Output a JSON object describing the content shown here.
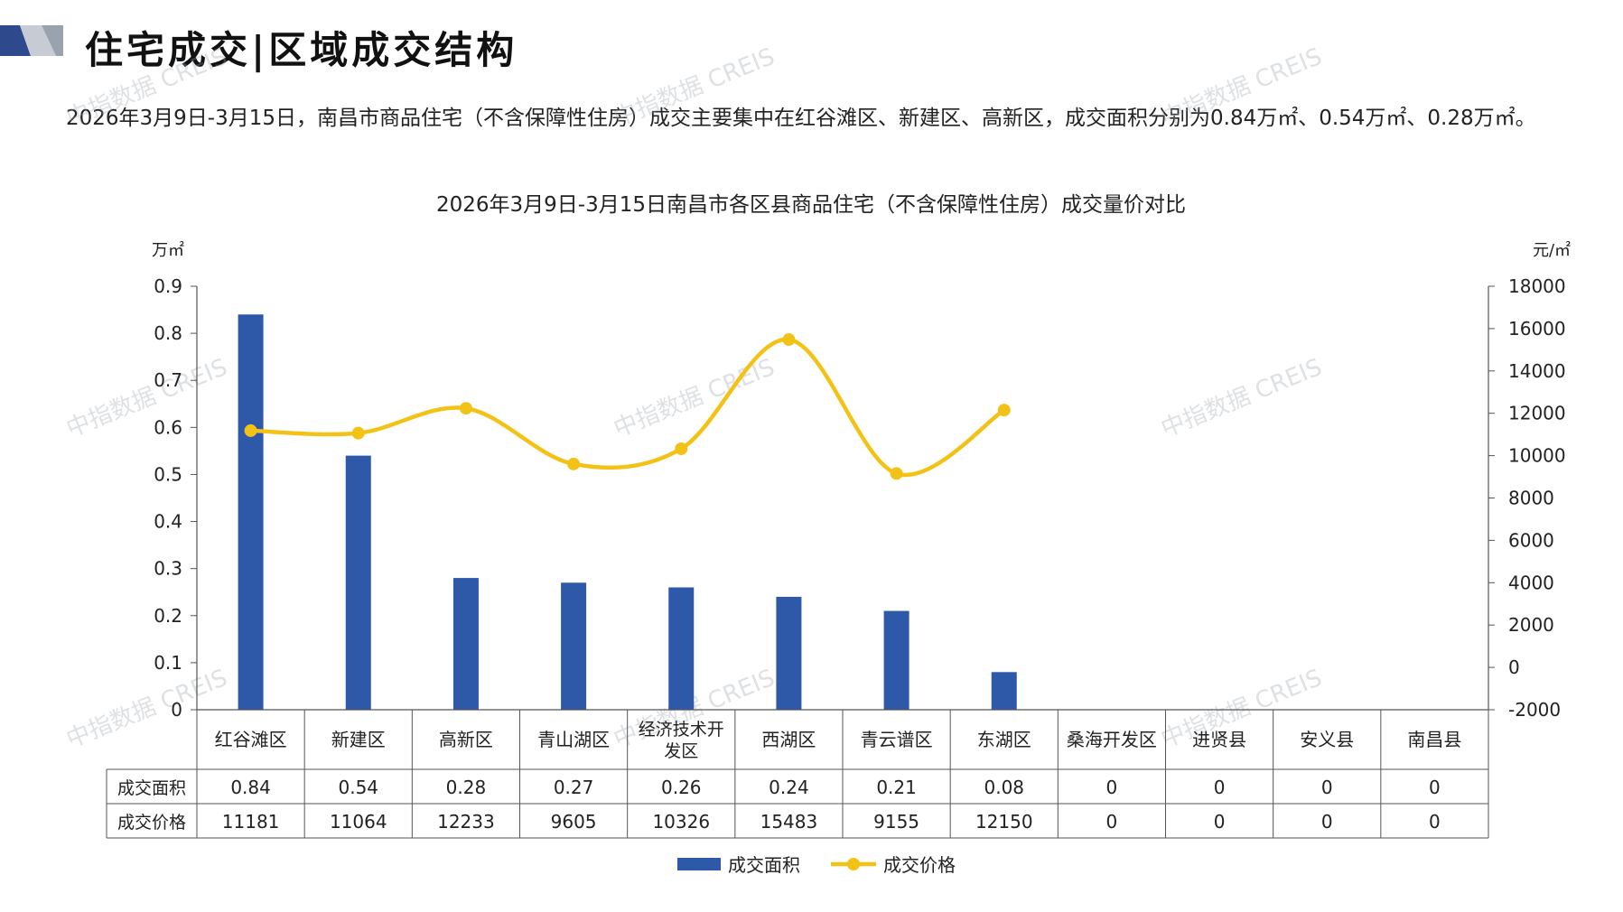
{
  "header": {
    "title": "住宅成交|区域成交结构"
  },
  "summary_text": "2026年3月9日-3月15日，南昌市商品住宅（不含保障性住房）成交主要集中在红谷滩区、新建区、高新区，成交面积分别为0.84万㎡、0.54万㎡、0.28万㎡。",
  "watermark": "中指数据 CREIS",
  "colors": {
    "bar": "#2E59A8",
    "line": "#F2C316",
    "grid": "#555555",
    "logo_dark": "#2E4A8C",
    "logo_gray": "#B8BDC6"
  },
  "chart_data": {
    "type": "bar",
    "title": "2026年3月9日-3月15日南昌市各区县商品住宅（不含保障性住房）成交量价对比",
    "y_left_label": "万㎡",
    "y_right_label": "元/㎡",
    "y_left_range": [
      0,
      0.9
    ],
    "y_left_ticks": [
      "0",
      "0.1",
      "0.2",
      "0.3",
      "0.4",
      "0.5",
      "0.6",
      "0.7",
      "0.8",
      "0.9"
    ],
    "y_right_range": [
      -2000,
      18000
    ],
    "y_right_ticks": [
      "-2000",
      "0",
      "2000",
      "4000",
      "6000",
      "8000",
      "10000",
      "12000",
      "14000",
      "16000",
      "18000"
    ],
    "categories": [
      "红谷滩区",
      "新建区",
      "高新区",
      "青山湖区",
      "经济技术开发区",
      "西湖区",
      "青云谱区",
      "东湖区",
      "桑海开发区",
      "进贤县",
      "安义县",
      "南昌县"
    ],
    "series": [
      {
        "name": "成交面积",
        "kind": "bar",
        "axis": "left",
        "values": [
          0.84,
          0.54,
          0.28,
          0.27,
          0.26,
          0.24,
          0.21,
          0.08,
          0,
          0,
          0,
          0
        ],
        "labels": [
          "0.84",
          "0.54",
          "0.28",
          "0.27",
          "0.26",
          "0.24",
          "0.21",
          "0.08",
          "0",
          "0",
          "0",
          "0"
        ]
      },
      {
        "name": "成交价格",
        "kind": "line",
        "axis": "right",
        "values": [
          11181,
          11064,
          12233,
          9605,
          10326,
          15483,
          9155,
          12150,
          0,
          0,
          0,
          0
        ],
        "labels": [
          "11181",
          "11064",
          "12233",
          "9605",
          "10326",
          "15483",
          "9155",
          "12150",
          "0",
          "0",
          "0",
          "0"
        ],
        "plotted_points": 8
      }
    ],
    "legend_position": "bottom-center",
    "data_table": true
  }
}
